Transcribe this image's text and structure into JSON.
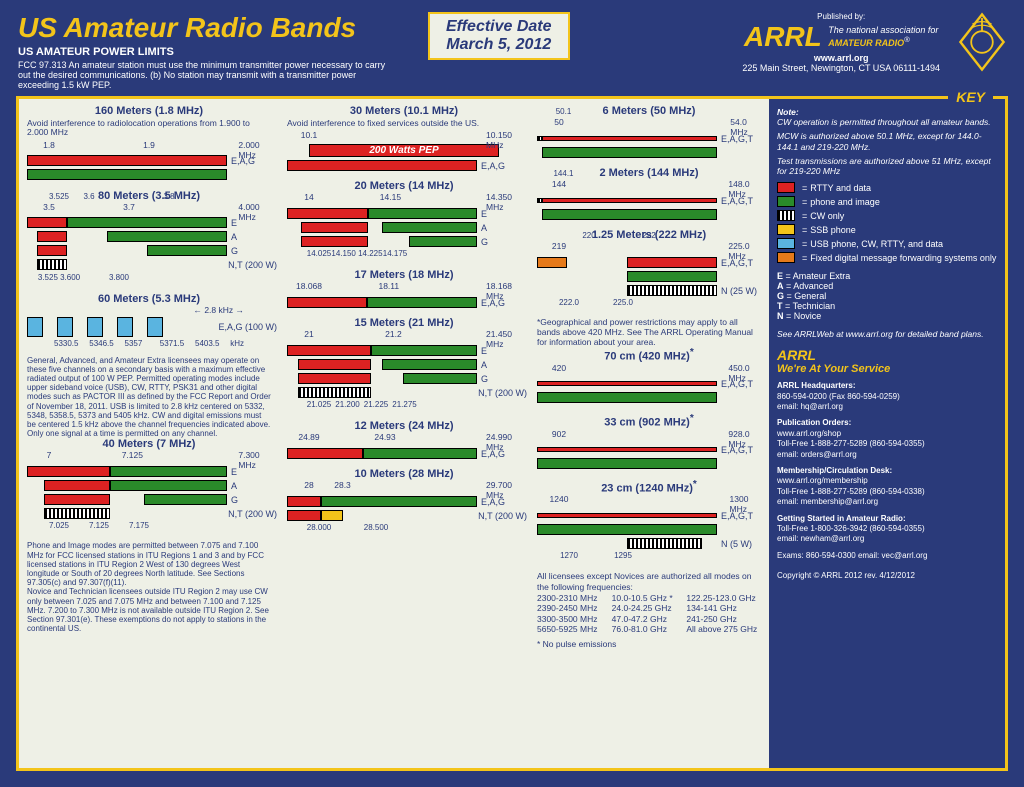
{
  "header": {
    "title": "US Amateur Radio Bands",
    "subtitle": "US AMATEUR POWER LIMITS",
    "fcc": "FCC 97.313   An amateur station must use the minimum transmitter power necessary to carry out the desired communications.   (b) No station may transmit with a transmitter power exceeding 1.5 kW PEP.",
    "eff_label": "Effective Date",
    "eff_date": "March 5, 2012",
    "pub": "Published by:",
    "arrl": "ARRL",
    "tag1": "The national association for",
    "tag2": "AMATEUR RADIO",
    "url": "www.arrl.org",
    "addr": "225 Main Street, Newington, CT  USA  06111-1494"
  },
  "colors": {
    "red": "#d22",
    "green": "#2a8a2a",
    "yellow": "#f3c41a",
    "blue": "#5ab4e0",
    "orange": "#e67a1a",
    "cw": "cw",
    "bg": "#eef0e6",
    "navy": "#2a3a7a"
  },
  "key": {
    "title": "KEY",
    "note_hdr": "Note:",
    "notes": [
      "CW operation is permitted throughout all amateur bands.",
      "MCW is authorized above 50.1 MHz, except for 144.0-144.1 and 219-220 MHz.",
      "Test transmissions are authorized above 51 MHz, except for 219-220 MHz"
    ],
    "items": [
      {
        "c": "red",
        "t": "RTTY and data"
      },
      {
        "c": "green",
        "t": "phone and image"
      },
      {
        "c": "cw",
        "t": "CW only"
      },
      {
        "c": "yellow",
        "t": "SSB phone"
      },
      {
        "c": "blue",
        "t": "USB phone, CW, RTTY, and  data"
      },
      {
        "c": "orange",
        "t": "Fixed digital message forwarding systems only"
      }
    ],
    "classes": [
      {
        "k": "E",
        "v": "Amateur Extra"
      },
      {
        "k": "A",
        "v": "Advanced"
      },
      {
        "k": "G",
        "v": "General"
      },
      {
        "k": "T",
        "v": "Technician"
      },
      {
        "k": "N",
        "v": "Novice"
      }
    ],
    "see": "See ARRLWeb at www.arrl.org for detailed band plans.",
    "service_hdr": "ARRL",
    "service_sub": "We're At Your Service",
    "contacts": [
      {
        "h": "ARRL Headquarters:",
        "l": "860-594-0200  (Fax 860-594-0259)\nemail:  hq@arrl.org"
      },
      {
        "h": "Publication Orders:",
        "l": "www.arrl.org/shop\nToll-Free 1-888-277-5289 (860-594-0355)\nemail:  orders@arrl.org"
      },
      {
        "h": "Membership/Circulation Desk:",
        "l": "www.arrl.org/membership\nToll-Free 1-888-277-5289 (860-594-0338)\nemail:  membership@arrl.org"
      },
      {
        "h": "Getting Started in Amateur Radio:",
        "l": "Toll-Free 1-800-326-3942 (860-594-0355)\nemail:  newham@arrl.org"
      }
    ],
    "exams": "Exams:  860-594-0300   email:  vec@arrl.org",
    "copyright": "Copyright © ARRL 2012     rev. 4/12/2012"
  },
  "footnotes": {
    "c3_geo": "*Geographical and power restrictions may apply to all bands above 420 MHz. See The ARRL Operating Manual for information about your area.",
    "c3_allmodes_hdr": "All licensees except Novices are authorized all modes on the following frequencies:",
    "c3_freqs": [
      [
        "2300-2310 MHz",
        "10.0-10.5 GHz *",
        "122.25-123.0 GHz"
      ],
      [
        "2390-2450 MHz",
        "24.0-24.25 GHz",
        "134-141 GHz"
      ],
      [
        "3300-3500 MHz",
        "47.0-47.2 GHz",
        "241-250 GHz"
      ],
      [
        "5650-5925 MHz",
        "76.0-81.0 GHz",
        "All above 275 GHz"
      ]
    ],
    "c3_nopulse": "* No pulse emissions",
    "c1_60m": "General, Advanced, and Amateur Extra licensees may operate on these five channels on a secondary basis with a maximum effective radiated output of 100 W PEP. Permitted operating modes include upper sideband voice (USB), CW, RTTY, PSK31 and other digital modes such as PACTOR III as defined by the FCC Report and Order of November 18, 2011. USB is limited to 2.8 kHz centered on 5332, 5348, 5358.5, 5373 and 5405 kHz. CW and digital emissions must be centered 1.5 kHz above the channel frequencies indicated above. Only one signal at a time is permitted on any channel.",
    "c1_40m": "Phone and Image modes are permitted between 7.075 and 7.100 MHz for FCC licensed stations in ITU Regions 1 and 3 and by FCC licensed stations in ITU Region 2 West of 130 degrees West longitude or South of 20 degrees North latitude. See Sections 97.305(c) and 97.307(f)(11).\nNovice and Technician  licensees outside ITU Region 2 may use CW only between 7.025 and 7.075 MHz and between 7.100 and 7.125 MHz. 7.200 to 7.300 MHz is not available outside ITU Region 2. See Section 97.301(e). These exemptions do not apply to stations in the continental US."
  },
  "bands": {
    "b160": {
      "title": "160 Meters (1.8 MHz)",
      "note": "Avoid interference to radiolocation operations from 1.900 to 2.000 MHz",
      "min": 1.8,
      "max": 2.0,
      "ticks": [
        1.8,
        1.9,
        "2.000 MHz"
      ],
      "rows": [
        {
          "segs": [
            {
              "c": "red",
              "f": 1.8,
              "t": 2.0
            }
          ],
          "lbl": "E,A,G"
        },
        {
          "segs": [
            {
              "c": "green",
              "f": 1.8,
              "t": 2.0
            }
          ],
          "lbl": ""
        }
      ]
    },
    "b80": {
      "title": "80 Meters (3.5 MHz)",
      "min": 3.5,
      "max": 4.0,
      "ticks": [
        3.5,
        3.7,
        "4.000 MHz"
      ],
      "tticks": [
        3.6,
        3.8,
        3.525
      ],
      "rows": [
        {
          "segs": [
            {
              "c": "red",
              "f": 3.5,
              "t": 3.6
            },
            {
              "c": "green",
              "f": 3.6,
              "t": 4.0
            }
          ],
          "lbl": "E"
        },
        {
          "segs": [
            {
              "c": "red",
              "f": 3.525,
              "t": 3.6
            },
            {
              "c": "green",
              "f": 3.7,
              "t": 4.0
            }
          ],
          "lbl": "A"
        },
        {
          "segs": [
            {
              "c": "red",
              "f": 3.525,
              "t": 3.6
            },
            {
              "c": "green",
              "f": 3.8,
              "t": 4.0
            }
          ],
          "lbl": "G"
        },
        {
          "segs": [
            {
              "c": "cw",
              "f": 3.525,
              "t": 3.6
            }
          ],
          "lbl": "N,T (200 W)"
        }
      ],
      "blabels": [
        "3.525 3.600",
        "3.800"
      ]
    },
    "b60": {
      "title": "60 Meters (5.3 MHz)",
      "lbl": "E,A,G (100 W)",
      "khz": "2.8 kHz",
      "chs": [
        5330.5,
        5346.5,
        5357.0,
        5371.5,
        5403.5
      ]
    },
    "b40": {
      "title": "40 Meters (7 MHz)",
      "min": 7.0,
      "max": 7.3,
      "ticks": [
        7.0,
        7.125,
        "7.300  MHz"
      ],
      "rows": [
        {
          "segs": [
            {
              "c": "red",
              "f": 7.0,
              "t": 7.125
            },
            {
              "c": "green",
              "f": 7.125,
              "t": 7.3
            }
          ],
          "lbl": "E"
        },
        {
          "segs": [
            {
              "c": "red",
              "f": 7.025,
              "t": 7.125
            },
            {
              "c": "green",
              "f": 7.125,
              "t": 7.3
            }
          ],
          "lbl": "A"
        },
        {
          "segs": [
            {
              "c": "red",
              "f": 7.025,
              "t": 7.125
            },
            {
              "c": "green",
              "f": 7.175,
              "t": 7.3
            }
          ],
          "lbl": "G"
        },
        {
          "segs": [
            {
              "c": "cw",
              "f": 7.025,
              "t": 7.125
            }
          ],
          "lbl": "N,T (200 W)"
        }
      ],
      "blabels": [
        "7.025",
        "7.125",
        "7.175"
      ]
    },
    "b30": {
      "title": "30 Meters (10.1 MHz)",
      "note": "Avoid interference to fixed services outside the US.",
      "min": 10.1,
      "max": 10.15,
      "pep": "200 Watts PEP",
      "ticks": [
        10.1,
        "10.150 MHz"
      ],
      "rows": [
        {
          "segs": [
            {
              "c": "red",
              "f": 10.1,
              "t": 10.15
            }
          ],
          "lbl": "E,A,G"
        }
      ]
    },
    "b20": {
      "title": "20 Meters (14 MHz)",
      "min": 14.0,
      "max": 14.35,
      "ticks": [
        14.0,
        14.15,
        "14.350 MHz"
      ],
      "rows": [
        {
          "segs": [
            {
              "c": "red",
              "f": 14.0,
              "t": 14.15
            },
            {
              "c": "green",
              "f": 14.15,
              "t": 14.35
            }
          ],
          "lbl": "E"
        },
        {
          "segs": [
            {
              "c": "red",
              "f": 14.025,
              "t": 14.15
            },
            {
              "c": "green",
              "f": 14.175,
              "t": 14.35
            }
          ],
          "lbl": "A"
        },
        {
          "segs": [
            {
              "c": "red",
              "f": 14.025,
              "t": 14.15
            },
            {
              "c": "green",
              "f": 14.225,
              "t": 14.35
            }
          ],
          "lbl": "G"
        }
      ],
      "blabels": [
        "14.025",
        "14.150  14.225",
        "14.175"
      ]
    },
    "b17": {
      "title": "17 Meters (18 MHz)",
      "min": 18.068,
      "max": 18.168,
      "ticks": [
        18.068,
        18.11,
        "18.168 MHz"
      ],
      "rows": [
        {
          "segs": [
            {
              "c": "red",
              "f": 18.068,
              "t": 18.11
            },
            {
              "c": "green",
              "f": 18.11,
              "t": 18.168
            }
          ],
          "lbl": "E,A,G"
        }
      ]
    },
    "b15": {
      "title": "15 Meters (21 MHz)",
      "min": 21.0,
      "max": 21.45,
      "ticks": [
        21.0,
        21.2,
        "21.450 MHz"
      ],
      "rows": [
        {
          "segs": [
            {
              "c": "red",
              "f": 21.0,
              "t": 21.2
            },
            {
              "c": "green",
              "f": 21.2,
              "t": 21.45
            }
          ],
          "lbl": "E"
        },
        {
          "segs": [
            {
              "c": "red",
              "f": 21.025,
              "t": 21.2
            },
            {
              "c": "green",
              "f": 21.225,
              "t": 21.45
            }
          ],
          "lbl": "A"
        },
        {
          "segs": [
            {
              "c": "red",
              "f": 21.025,
              "t": 21.2
            },
            {
              "c": "green",
              "f": 21.275,
              "t": 21.45
            }
          ],
          "lbl": "G"
        },
        {
          "segs": [
            {
              "c": "cw",
              "f": 21.025,
              "t": 21.2
            }
          ],
          "lbl": "N,T (200 W)"
        }
      ],
      "blabels": [
        "21.025",
        "21.200",
        "21.225",
        "21.275"
      ]
    },
    "b12": {
      "title": "12 Meters (24 MHz)",
      "min": 24.89,
      "max": 24.99,
      "ticks": [
        24.89,
        24.93,
        "24.990 MHz"
      ],
      "rows": [
        {
          "segs": [
            {
              "c": "red",
              "f": 24.89,
              "t": 24.93
            },
            {
              "c": "green",
              "f": 24.93,
              "t": 24.99
            }
          ],
          "lbl": "E,A,G"
        }
      ]
    },
    "b10": {
      "title": "10 Meters (28 MHz)",
      "min": 28.0,
      "max": 29.7,
      "ticks": [
        28.0,
        28.3,
        "29.700 MHz"
      ],
      "rows": [
        {
          "segs": [
            {
              "c": "red",
              "f": 28.0,
              "t": 28.3
            },
            {
              "c": "green",
              "f": 28.3,
              "t": 29.7
            }
          ],
          "lbl": "E,A,G"
        },
        {
          "segs": [
            {
              "c": "red",
              "f": 28.0,
              "t": 28.3
            },
            {
              "c": "yellow",
              "f": 28.3,
              "t": 28.5
            }
          ],
          "lbl": "N,T (200 W)"
        }
      ],
      "blabels": [
        "28.000",
        "28.500"
      ]
    },
    "b6": {
      "title": "6 Meters (50 MHz)",
      "min": 50.0,
      "max": 54.0,
      "ticks": [
        50.0,
        "54.0 MHz"
      ],
      "tticks": [
        50.1
      ],
      "rows": [
        {
          "segs": [
            {
              "c": "cw",
              "f": 50.0,
              "t": 50.1
            },
            {
              "c": "red",
              "f": 50.1,
              "t": 54.0
            }
          ],
          "lbl": "E,A,G,T",
          "thin": true
        },
        {
          "segs": [
            {
              "c": "green",
              "f": 50.1,
              "t": 54.0
            }
          ],
          "lbl": ""
        }
      ]
    },
    "b2": {
      "title": "2 Meters (144 MHz)",
      "min": 144.0,
      "max": 148.0,
      "ticks": [
        144.0,
        "148.0 MHz"
      ],
      "tticks": [
        144.1
      ],
      "rows": [
        {
          "segs": [
            {
              "c": "cw",
              "f": 144.0,
              "t": 144.1
            },
            {
              "c": "red",
              "f": 144.1,
              "t": 148.0
            }
          ],
          "lbl": "E,A,G,T",
          "thin": true
        },
        {
          "segs": [
            {
              "c": "green",
              "f": 144.1,
              "t": 148.0
            }
          ],
          "lbl": ""
        }
      ]
    },
    "b125": {
      "title": "1.25 Meters (222 MHz)",
      "min": 219.0,
      "max": 225.0,
      "ticks": [
        219.0,
        "225.0 MHz"
      ],
      "tticks": [
        220.0,
        222.0
      ],
      "rows": [
        {
          "segs": [
            {
              "c": "orange",
              "f": 219.0,
              "t": 220.0
            },
            {
              "c": "red",
              "f": 222.0,
              "t": 225.0
            }
          ],
          "lbl": "E,A,G,T"
        },
        {
          "segs": [
            {
              "c": "green",
              "f": 222.0,
              "t": 225.0
            }
          ],
          "lbl": ""
        },
        {
          "segs": [
            {
              "c": "cw",
              "f": 222.0,
              "t": 225.0
            }
          ],
          "lbl": "N (25 W)"
        }
      ],
      "blabels": [
        "222.0",
        "225.0"
      ]
    },
    "b70": {
      "title": "70 cm (420 MHz)",
      "star": true,
      "min": 420.0,
      "max": 450.0,
      "ticks": [
        420.0,
        "450.0 MHz"
      ],
      "rows": [
        {
          "segs": [
            {
              "c": "red",
              "f": 420.0,
              "t": 450.0
            }
          ],
          "lbl": "E,A,G,T",
          "thin": true
        },
        {
          "segs": [
            {
              "c": "green",
              "f": 420.0,
              "t": 450.0
            }
          ],
          "lbl": ""
        }
      ]
    },
    "b33": {
      "title": "33 cm (902 MHz)",
      "star": true,
      "min": 902.0,
      "max": 928.0,
      "ticks": [
        902.0,
        "928.0 MHz"
      ],
      "rows": [
        {
          "segs": [
            {
              "c": "red",
              "f": 902.0,
              "t": 928.0
            }
          ],
          "lbl": "E,A,G,T",
          "thin": true
        },
        {
          "segs": [
            {
              "c": "green",
              "f": 902.0,
              "t": 928.0
            }
          ],
          "lbl": ""
        }
      ]
    },
    "b23": {
      "title": "23 cm (1240 MHz)",
      "star": true,
      "min": 1240,
      "max": 1300,
      "ticks": [
        1240,
        "1300 MHz"
      ],
      "rows": [
        {
          "segs": [
            {
              "c": "red",
              "f": 1240,
              "t": 1300
            }
          ],
          "lbl": "E,A,G,T",
          "thin": true
        },
        {
          "segs": [
            {
              "c": "green",
              "f": 1240,
              "t": 1300
            }
          ],
          "lbl": ""
        },
        {
          "segs": [
            {
              "c": "cw",
              "f": 1270,
              "t": 1295
            }
          ],
          "lbl": "N (5 W)"
        }
      ],
      "blabels": [
        "1270",
        "1295"
      ]
    }
  }
}
